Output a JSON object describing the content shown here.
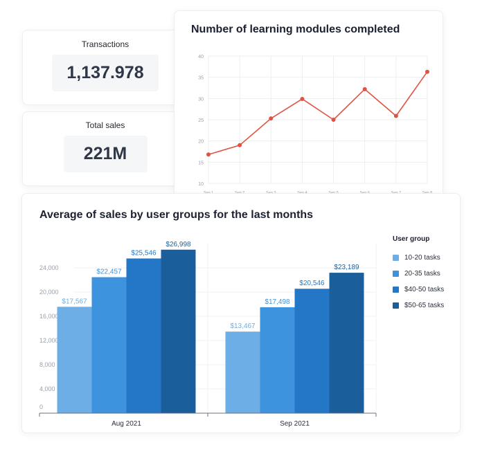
{
  "kpis": {
    "transactions": {
      "label": "Transactions",
      "value": "1,137.978"
    },
    "total_sales": {
      "label": "Total sales",
      "value": "221M"
    }
  },
  "chart_data": [
    {
      "type": "line",
      "title": "Number of learning modules completed",
      "x": [
        "Sep 1",
        "Sep 2",
        "Sep 3",
        "Sep 4",
        "Sep 5",
        "Sep 6",
        "Sep 7",
        "Sep 8"
      ],
      "series": [
        {
          "values": [
            16.8,
            19.0,
            25.3,
            29.9,
            25.0,
            32.2,
            25.9,
            36.3
          ],
          "color": "#e05343"
        }
      ],
      "ylim": [
        10,
        40
      ],
      "yticks": [
        10,
        15,
        20,
        25,
        30,
        35,
        40
      ],
      "grid": true
    },
    {
      "type": "bar",
      "title": "Average of sales by user groups for the last months",
      "categories": [
        "Aug 2021",
        "Sep 2021"
      ],
      "series": [
        {
          "name": "10-20 tasks",
          "values": [
            17567,
            13467
          ],
          "labels": [
            "$17,567",
            "$13,467"
          ],
          "color": "#6eaee6"
        },
        {
          "name": "20-35 tasks",
          "values": [
            22457,
            17498
          ],
          "labels": [
            "$22,457",
            "$17,498"
          ],
          "color": "#3d93de"
        },
        {
          "name": "$40-50 tasks",
          "values": [
            25546,
            20546
          ],
          "labels": [
            "$25,546",
            "$20,546"
          ],
          "color": "#2377c6"
        },
        {
          "name": "$50-65 tasks",
          "values": [
            26998,
            23189
          ],
          "labels": [
            "$26,998",
            "$23,189"
          ],
          "color": "#1b5e9c"
        }
      ],
      "ylim": [
        0,
        28000
      ],
      "yticks": [
        0,
        4000,
        8000,
        12000,
        16000,
        20000,
        24000
      ],
      "yticklabels": [
        "0",
        "4,000",
        "8,000",
        "12,000",
        "16,000",
        "20,000",
        "24,000"
      ],
      "legend_title": "User group",
      "legend_position": "right",
      "grid": true
    }
  ]
}
